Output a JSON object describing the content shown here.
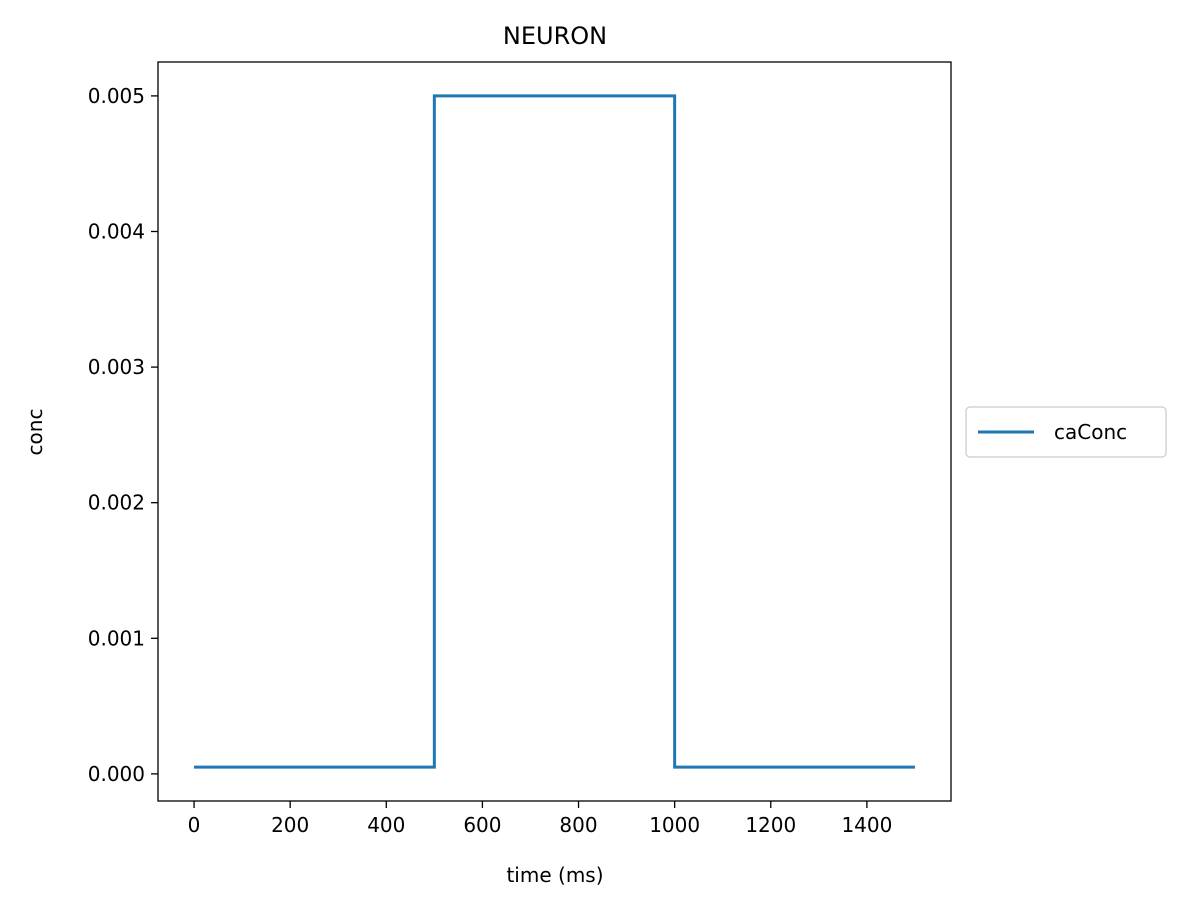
{
  "chart_data": {
    "type": "line",
    "title": "NEURON",
    "xlabel": "time (ms)",
    "ylabel": "conc",
    "xlim": [
      -75,
      1575
    ],
    "ylim": [
      -0.0002,
      0.00525
    ],
    "xticks": [
      0,
      200,
      400,
      600,
      800,
      1000,
      1200,
      1400
    ],
    "yticks": [
      0.0,
      0.001,
      0.002,
      0.003,
      0.004,
      0.005
    ],
    "ytick_labels": [
      "0.000",
      "0.001",
      "0.002",
      "0.003",
      "0.004",
      "0.005"
    ],
    "grid": false,
    "legend_position": "center-right, outside",
    "series": [
      {
        "name": "caConc",
        "color": "#1f77b4",
        "x": [
          0,
          500,
          500,
          1000,
          1000,
          1500
        ],
        "y": [
          5e-05,
          5e-05,
          0.005,
          0.005,
          5e-05,
          5e-05
        ]
      }
    ]
  }
}
